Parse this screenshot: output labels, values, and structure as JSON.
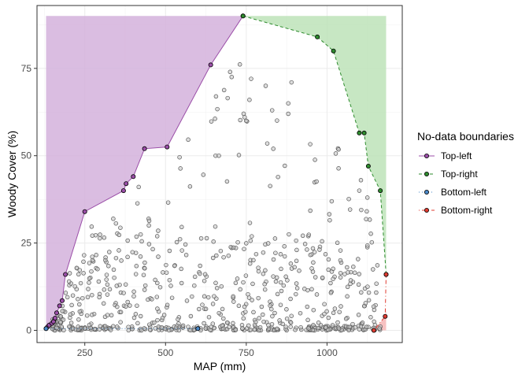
{
  "chart_data": {
    "type": "scatter",
    "title": "",
    "xlabel": "MAP (mm)",
    "ylabel": "Woody Cover (%)",
    "xlim": [
      102,
      1233
    ],
    "ylim": [
      -3.5,
      93
    ],
    "xticks": [
      250,
      500,
      750,
      1000
    ],
    "yticks": [
      0,
      25,
      50,
      75
    ],
    "grid": true,
    "legend": {
      "title": "No-data boundaries",
      "placement": "right",
      "entries": [
        {
          "label": "Top-left",
          "color": "#9b4fa8",
          "dash": "solid"
        },
        {
          "label": "Top-right",
          "color": "#2e8b2e",
          "dash": "dashed"
        },
        {
          "label": "Bottom-left",
          "color": "#4a88c7",
          "dash": "dotted"
        },
        {
          "label": "Bottom-right",
          "color": "#e03c31",
          "dash": "dotdash"
        }
      ]
    },
    "regions": [
      {
        "name": "Top-left",
        "fill": "#d4b2dc",
        "points": [
          [
            130,
            0.5
          ],
          [
            135,
            1
          ],
          [
            140,
            1.5
          ],
          [
            148,
            2
          ],
          [
            153,
            2.5
          ],
          [
            158,
            3.5
          ],
          [
            163,
            5
          ],
          [
            172,
            7
          ],
          [
            180,
            8.5
          ],
          [
            190,
            16
          ],
          [
            250,
            34
          ],
          [
            370,
            40
          ],
          [
            378,
            42
          ],
          [
            400,
            44
          ],
          [
            435,
            52
          ],
          [
            505,
            52.5
          ],
          [
            640,
            76
          ],
          [
            740,
            90
          ],
          [
            130,
            90
          ]
        ]
      },
      {
        "name": "Top-right",
        "fill": "#bde3b8",
        "points": [
          [
            740,
            90
          ],
          [
            970,
            84
          ],
          [
            1020,
            80
          ],
          [
            1100,
            56.5
          ],
          [
            1115,
            56.5
          ],
          [
            1128,
            47
          ],
          [
            1165,
            40
          ],
          [
            1183,
            16
          ],
          [
            1183,
            90
          ]
        ]
      },
      {
        "name": "Bottom-right",
        "fill": "#f6b6b6",
        "points": [
          [
            1145,
            0
          ],
          [
            1180,
            4
          ],
          [
            1183,
            6
          ],
          [
            1183,
            0
          ]
        ]
      }
    ],
    "series": [
      {
        "name": "Top-left",
        "color": "#9b4fa8",
        "dash": "solid",
        "x": [
          130,
          135,
          140,
          148,
          153,
          158,
          163,
          172,
          180,
          190,
          250,
          370,
          378,
          400,
          435,
          505,
          640,
          740
        ],
        "y": [
          0.5,
          1,
          1.5,
          2,
          2.5,
          3.5,
          5,
          7,
          8.5,
          16,
          34,
          40,
          42,
          44,
          52,
          52.5,
          76,
          90
        ]
      },
      {
        "name": "Top-right",
        "color": "#2e8b2e",
        "dash": "dashed",
        "x": [
          740,
          970,
          1020,
          1100,
          1115,
          1128,
          1165,
          1183
        ],
        "y": [
          90,
          84,
          80,
          56.5,
          56.5,
          47,
          40,
          16
        ]
      },
      {
        "name": "Bottom-left",
        "color": "#4a88c7",
        "dash": "dotted",
        "x": [
          130,
          600
        ],
        "y": [
          0.5,
          0.5
        ]
      },
      {
        "name": "Bottom-right",
        "color": "#e03c31",
        "dash": "dotdash",
        "x": [
          1145,
          1180,
          1183
        ],
        "y": [
          0,
          4,
          16
        ]
      }
    ]
  }
}
